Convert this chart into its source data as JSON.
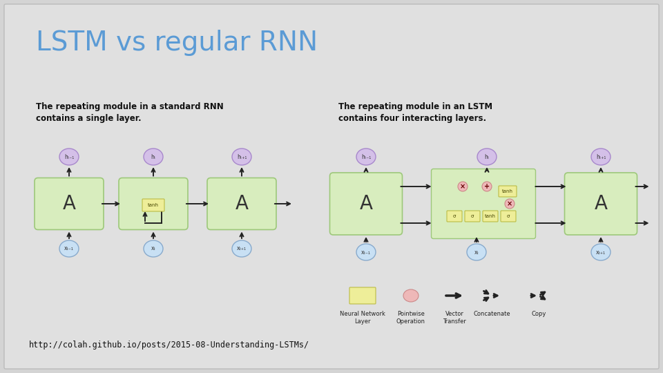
{
  "title": "LSTM vs regular RNN",
  "title_color": "#5B9BD5",
  "bg_color": "#D4D4D4",
  "slide_bg": "#E0E0E0",
  "rnn_caption": "The repeating module in a standard RNN\ncontains a single layer.",
  "lstm_caption": "The repeating module in an LSTM\ncontains four interacting layers.",
  "url": "http://colah.github.io/posts/2015-08-Understanding-LSTMs/",
  "green_fill": "#D8EDBE",
  "green_border": "#9DC87A",
  "purple_fill": "#D4C0E8",
  "purple_border": "#A888CC",
  "blue_fill": "#C8E0F4",
  "blue_border": "#88AACC",
  "yellow_fill": "#EEEE99",
  "yellow_border": "#BBBB44",
  "pink_fill": "#EEB8B8",
  "pink_border": "#CC8888",
  "legend_labels": [
    "Neural Network\nLayer",
    "Pointwise\nOperation",
    "Vector\nTransfer",
    "Concatenate",
    "Copy"
  ]
}
